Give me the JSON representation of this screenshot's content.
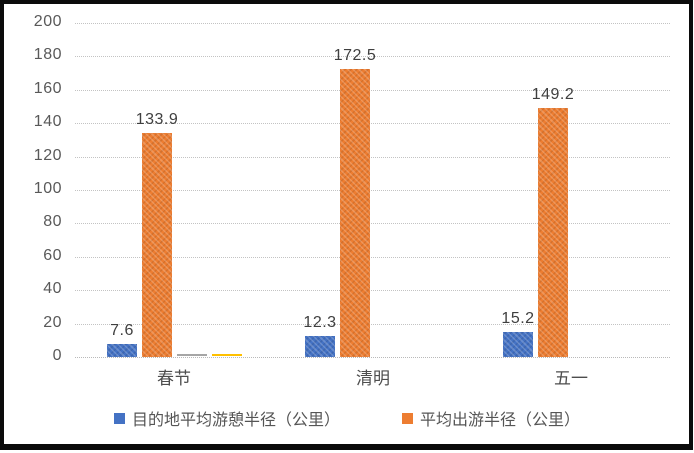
{
  "chart_data": {
    "type": "bar",
    "title": "",
    "categories": [
      "春节",
      "清明",
      "五一"
    ],
    "series": [
      {
        "name": "目的地平均游憩半径（公里）",
        "color": "#4472C4",
        "values": [
          7.6,
          12.3,
          15.2
        ]
      },
      {
        "name": "平均出游半径（公里）",
        "color": "#ED7D31",
        "values": [
          133.9,
          172.5,
          149.2
        ]
      }
    ],
    "data_labels": [
      [
        "7.6",
        "12.3",
        "15.2"
      ],
      [
        "133.9",
        "172.5",
        "149.2"
      ]
    ],
    "minor_marks": [
      {
        "category_index": 0,
        "color": "#A6A6A6",
        "value": 1
      },
      {
        "category_index": 0,
        "color": "#FFC000",
        "value": 1
      }
    ],
    "ylim": [
      0,
      200
    ],
    "yticks": [
      0,
      20,
      40,
      60,
      80,
      100,
      120,
      140,
      160,
      180,
      200
    ],
    "grid": "horizontal-dotted",
    "legend_position": "bottom",
    "xlabel": "",
    "ylabel": ""
  },
  "colors": {
    "background": "#FFFFFF",
    "frame_border": "#0B0B0B",
    "gridline": "#C3C3C3",
    "axis_text": "#595959",
    "value_label_text": "#3F3F3F",
    "legend_text": "#555555"
  },
  "legend": {
    "items": [
      {
        "label": "目的地平均游憩半径（公里）",
        "color": "#4472C4"
      },
      {
        "label": "平均出游半径（公里）",
        "color": "#ED7D31"
      }
    ]
  }
}
